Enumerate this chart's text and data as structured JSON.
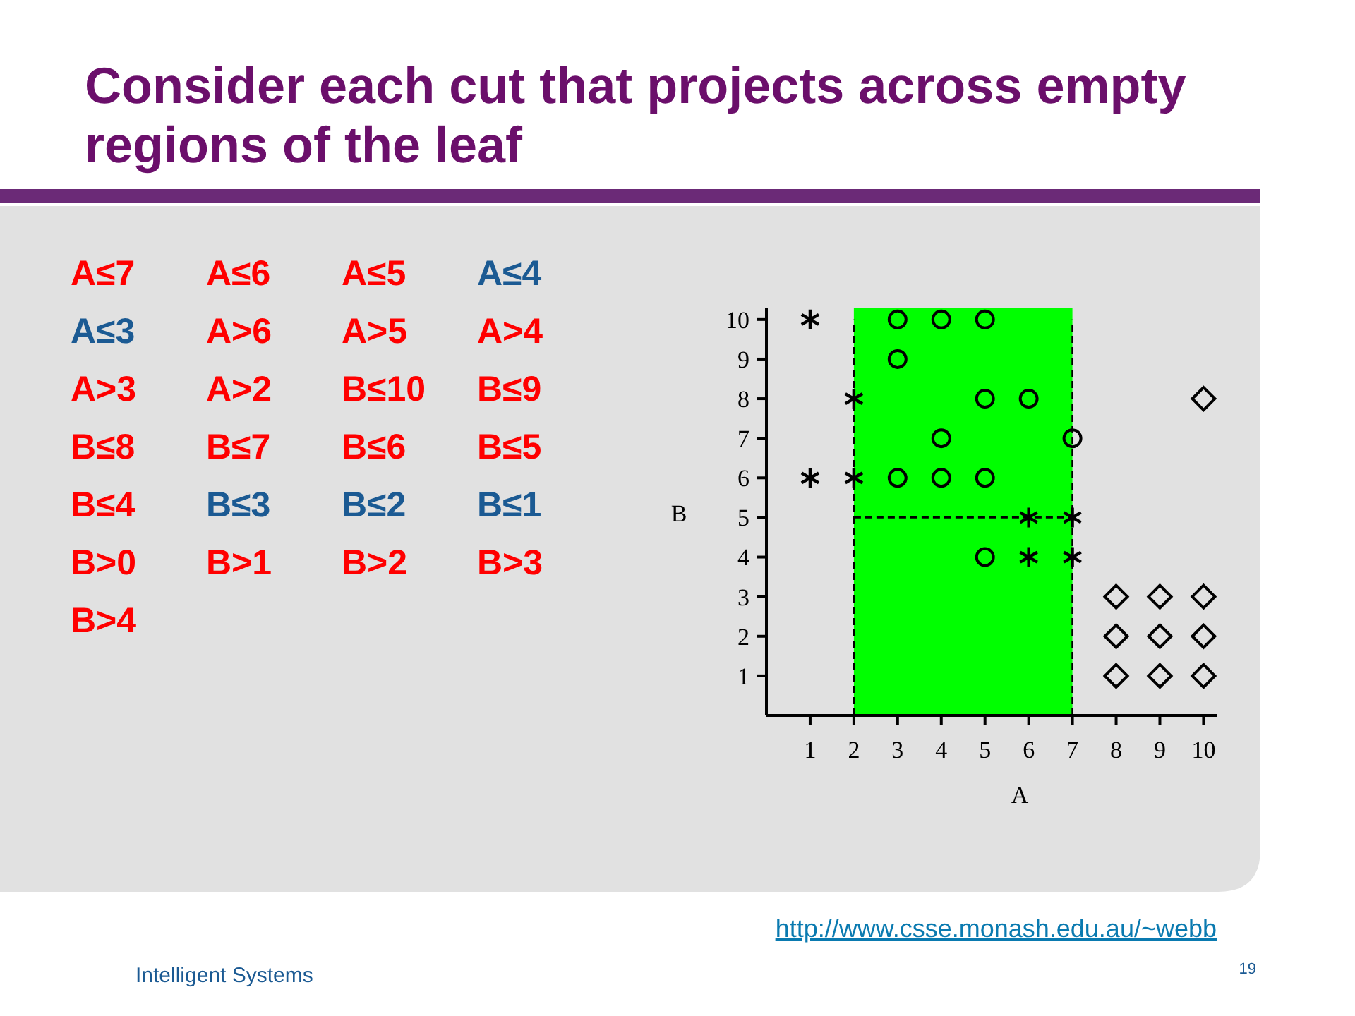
{
  "chart_data": [
    {
      "type": "other",
      "title": "Consider each cut that projects across empty regions of the leaf",
      "annotations": [
        "A≤7",
        "A≤6",
        "A≤5",
        "A≤4",
        "A≤3",
        "A>6",
        "A>5",
        "A>4",
        "A>3",
        "A>2",
        "B≤10",
        "B≤9",
        "B≤8",
        "B≤7",
        "B≤6",
        "B≤5",
        "B≤4",
        "B≤3",
        "B≤2",
        "B≤1",
        "B>0",
        "B>1",
        "B>2",
        "B>3",
        "B>4"
      ],
      "colors": [
        "#ff0000",
        "#ff0000",
        "#ff0000",
        "#1b5a93",
        "#1b5a93",
        "#ff0000",
        "#ff0000",
        "#ff0000",
        "#ff0000",
        "#ff0000",
        "#ff0000",
        "#ff0000",
        "#ff0000",
        "#ff0000",
        "#ff0000",
        "#ff0000",
        "#ff0000",
        "#1b5a93",
        "#1b5a93",
        "#1b5a93",
        "#ff0000",
        "#ff0000",
        "#ff0000",
        "#ff0000",
        "#ff0000"
      ]
    },
    {
      "type": "scatter",
      "xlabel": "A",
      "ylabel": "B",
      "xlim": [
        0,
        10.3
      ],
      "ylim": [
        0,
        10.3
      ],
      "xticks": [
        1,
        2,
        3,
        4,
        5,
        6,
        7,
        8,
        9,
        10
      ],
      "yticks": [
        1,
        2,
        3,
        4,
        5,
        6,
        7,
        8,
        9,
        10
      ],
      "grid": false,
      "bands": [
        {
          "axis": "x",
          "from": 2,
          "to": 7,
          "color": "#00ff00"
        }
      ],
      "series": [
        {
          "type": "line",
          "color": "#000000",
          "marker": "none",
          "line_style": "dashed",
          "x": [
            2,
            2
          ],
          "values": [
            0,
            10
          ]
        },
        {
          "type": "line",
          "color": "#000000",
          "marker": "none",
          "line_style": "dashed",
          "x": [
            7,
            7
          ],
          "values": [
            0,
            10
          ]
        },
        {
          "type": "line",
          "color": "#000000",
          "marker": "none",
          "line_style": "dashed",
          "x": [
            2,
            7
          ],
          "values": [
            5,
            5
          ]
        },
        {
          "type": "scatter",
          "color": "#000000",
          "marker": "cross",
          "x": [
            1,
            2,
            1,
            2,
            6,
            7,
            6,
            7
          ],
          "values": [
            10,
            8,
            6,
            6,
            5,
            5,
            4,
            4
          ]
        },
        {
          "type": "scatter",
          "color": "#000000",
          "marker": "circle",
          "x": [
            3,
            4,
            5,
            3,
            5,
            6,
            4,
            7,
            3,
            4,
            5,
            5
          ],
          "values": [
            10,
            10,
            10,
            9,
            8,
            8,
            7,
            7,
            6,
            6,
            6,
            4
          ]
        },
        {
          "type": "scatter",
          "color": "#000000",
          "marker": "diamond",
          "x": [
            10,
            8,
            9,
            10,
            8,
            9,
            10,
            8,
            9,
            10
          ],
          "values": [
            8,
            3,
            3,
            3,
            2,
            2,
            2,
            1,
            1,
            1
          ]
        }
      ]
    },
    {
      "type": "other",
      "annotations": [
        "Intelligent Systems",
        "http://www.csse.monash.edu.au/~webb",
        "19"
      ]
    }
  ]
}
